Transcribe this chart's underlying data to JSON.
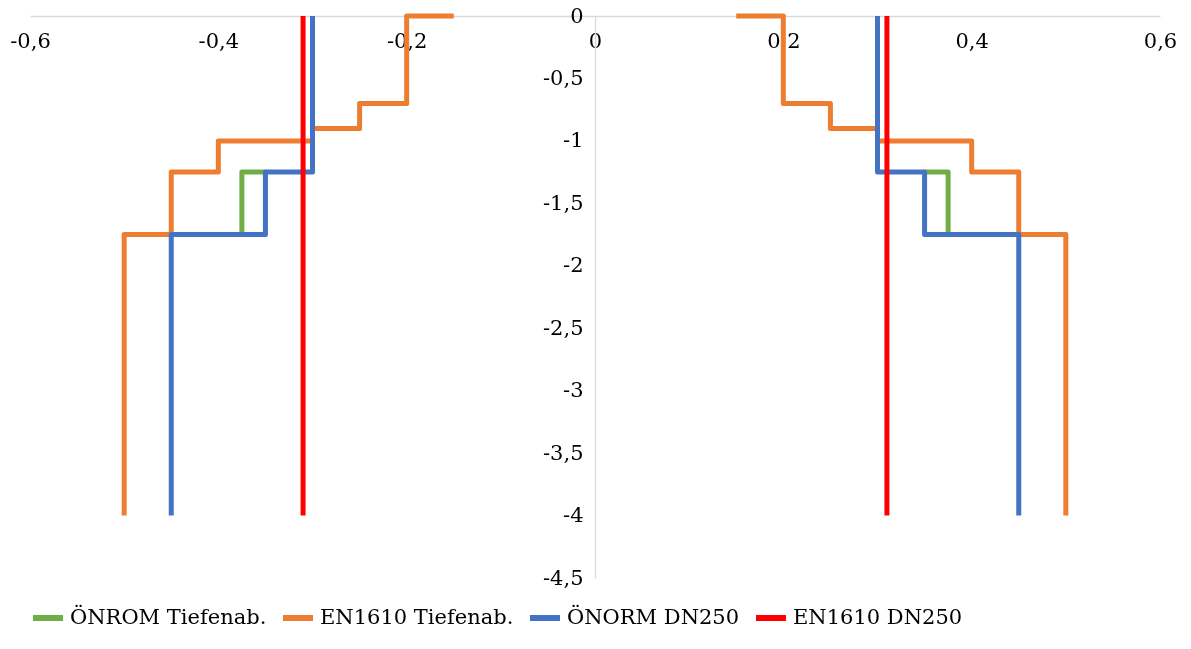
{
  "chart_data": {
    "type": "line",
    "legend": "bottom",
    "xlim": [
      -0.6,
      0.6
    ],
    "ylim": [
      -4.5,
      0
    ],
    "xticks": [
      {
        "value": -0.6,
        "label": "-0,6"
      },
      {
        "value": -0.4,
        "label": "-0,4"
      },
      {
        "value": -0.2,
        "label": "-0,2"
      },
      0,
      {
        "value": 0.2,
        "label": "0,2"
      },
      {
        "value": 0.4,
        "label": "0,4"
      },
      {
        "value": 0.6,
        "label": "0,6"
      }
    ],
    "yticks": [
      0,
      {
        "value": -0.5,
        "label": "-0,5"
      },
      -1,
      {
        "value": -1.5,
        "label": "-1,5"
      },
      -2,
      {
        "value": -2.5,
        "label": "-2,5"
      },
      -3,
      {
        "value": -3.5,
        "label": "-3,5"
      },
      -4,
      {
        "value": -4.5,
        "label": "-4,5"
      }
    ],
    "series": [
      {
        "name": "ÖNROM Tiefenab.",
        "color": "#70ad47",
        "x": [
          -0.35,
          -0.375,
          -0.375,
          0,
          0.35,
          0.375,
          0.375
        ],
        "values": [
          -1.25,
          -1.25,
          -1.75,
          null,
          -1.25,
          -1.25,
          -1.75
        ]
      },
      {
        "name": "EN1610 Tiefenab.",
        "color": "#ed7d31",
        "x": [
          -0.15,
          -0.2,
          -0.2,
          -0.25,
          -0.25,
          -0.3,
          -0.3,
          -0.4,
          -0.4,
          -0.45,
          -0.45,
          -0.5,
          -0.5,
          0,
          0.15,
          0.2,
          0.2,
          0.25,
          0.25,
          0.3,
          0.3,
          0.4,
          0.4,
          0.45,
          0.45,
          0.5,
          0.5
        ],
        "values": [
          0,
          0,
          -0.7,
          -0.7,
          -0.9,
          -0.9,
          -1,
          -1,
          -1.25,
          -1.25,
          -1.75,
          -1.75,
          -4,
          null,
          0,
          0,
          -0.7,
          -0.7,
          -0.9,
          -0.9,
          -1,
          -1,
          -1.25,
          -1.25,
          -1.75,
          -1.75,
          -4
        ]
      },
      {
        "name": "ÖNORM DN250",
        "color": "#4472c4",
        "x": [
          -0.3,
          -0.3,
          -0.35,
          -0.35,
          -0.45,
          -0.45,
          0,
          0.3,
          0.3,
          0.35,
          0.35,
          0.45,
          0.45
        ],
        "values": [
          0,
          -1.25,
          -1.25,
          -1.75,
          -1.75,
          -4,
          null,
          0,
          -1.25,
          -1.25,
          -1.75,
          -1.75,
          -4
        ]
      },
      {
        "name": "EN1610 DN250",
        "color": "#ff0000",
        "x": [
          -0.31,
          -0.31,
          0,
          0.31,
          0.31
        ],
        "values": [
          0,
          -4,
          null,
          0,
          -4
        ]
      }
    ]
  }
}
